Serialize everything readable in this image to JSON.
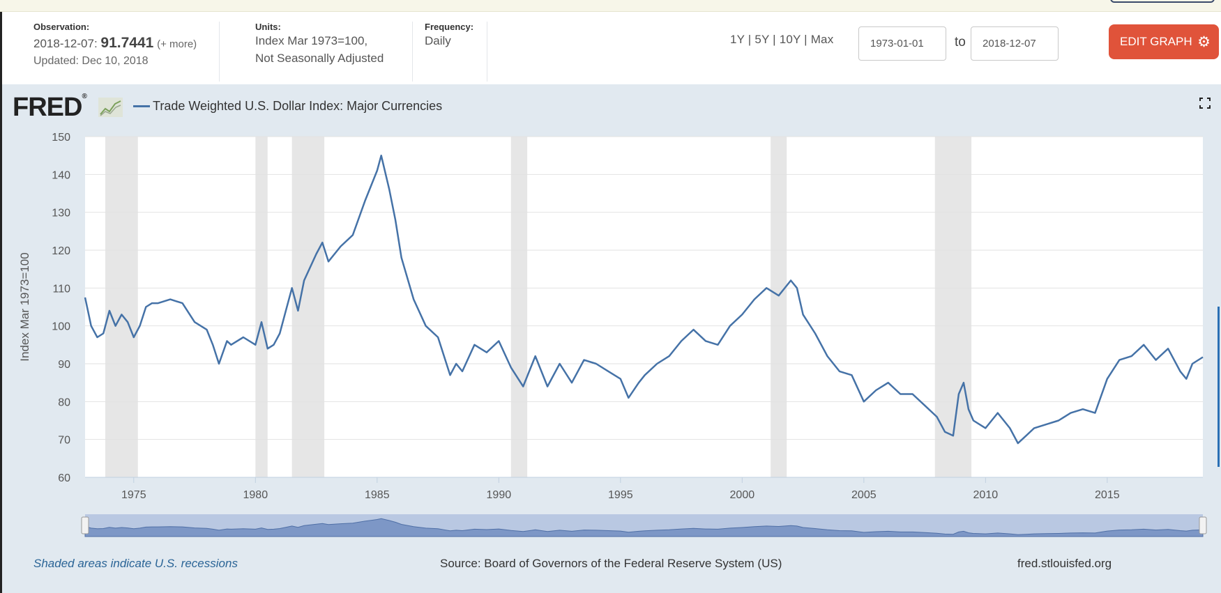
{
  "header": {
    "observation_label": "Observation:",
    "observation_date": "2018-12-07:",
    "observation_value": "91.7441",
    "observation_more": "(+ more)",
    "updated": "Updated: Dec 10, 2018",
    "units_label": "Units:",
    "units_line1": "Index Mar 1973=100,",
    "units_line2": "Not Seasonally Adjusted",
    "frequency_label": "Frequency:",
    "frequency_value": "Daily",
    "range_links": "1Y | 5Y | 10Y | Max",
    "date_start": "1973-01-01",
    "to_label": "to",
    "date_end": "2018-12-07",
    "edit_button": "EDIT GRAPH",
    "accent_color": "#e0533a"
  },
  "graph": {
    "logo": "FRED",
    "logo_mark": "®",
    "series_title": "Trade Weighted U.S. Dollar Index: Major Currencies",
    "series_color": "#4572a7"
  },
  "footer": {
    "note": "Shaded areas indicate U.S. recessions",
    "source": "Source: Board of Governors of the Federal Reserve System (US)",
    "site": "fred.stlouisfed.org"
  },
  "chart_data": {
    "type": "line",
    "title": "Trade Weighted U.S. Dollar Index: Major Currencies",
    "ylabel": "Index Mar 1973=100",
    "xlabel": "",
    "xlim": [
      1973.0,
      2018.93
    ],
    "ylim": [
      60,
      150
    ],
    "x_ticks": [
      1975,
      1980,
      1985,
      1990,
      1995,
      2000,
      2005,
      2010,
      2015
    ],
    "y_ticks": [
      60,
      70,
      80,
      90,
      100,
      110,
      120,
      130,
      140,
      150
    ],
    "grid": true,
    "recessions": [
      [
        1973.83,
        1975.17
      ],
      [
        1980.0,
        1980.5
      ],
      [
        1981.5,
        1982.83
      ],
      [
        1990.5,
        1991.17
      ],
      [
        2001.17,
        2001.83
      ],
      [
        2007.92,
        2009.42
      ]
    ],
    "series": [
      {
        "name": "Trade Weighted U.S. Dollar Index: Major Currencies",
        "x": [
          1973.0,
          1973.25,
          1973.5,
          1973.75,
          1974.0,
          1974.25,
          1974.5,
          1974.75,
          1975.0,
          1975.25,
          1975.5,
          1975.75,
          1976.0,
          1976.5,
          1977.0,
          1977.5,
          1978.0,
          1978.25,
          1978.5,
          1978.83,
          1979.0,
          1979.5,
          1980.0,
          1980.25,
          1980.5,
          1980.75,
          1981.0,
          1981.25,
          1981.5,
          1981.75,
          1982.0,
          1982.5,
          1982.75,
          1983.0,
          1983.5,
          1984.0,
          1984.5,
          1984.75,
          1985.0,
          1985.17,
          1985.5,
          1985.75,
          1986.0,
          1986.5,
          1987.0,
          1987.5,
          1988.0,
          1988.25,
          1988.5,
          1989.0,
          1989.5,
          1990.0,
          1990.5,
          1991.0,
          1991.5,
          1992.0,
          1992.5,
          1993.0,
          1993.5,
          1994.0,
          1994.5,
          1995.0,
          1995.33,
          1995.75,
          1996.0,
          1996.5,
          1997.0,
          1997.5,
          1998.0,
          1998.5,
          1999.0,
          1999.5,
          2000.0,
          2000.5,
          2001.0,
          2001.5,
          2002.0,
          2002.25,
          2002.5,
          2003.0,
          2003.5,
          2004.0,
          2004.5,
          2005.0,
          2005.5,
          2006.0,
          2006.5,
          2007.0,
          2007.5,
          2008.0,
          2008.33,
          2008.67,
          2008.9,
          2009.1,
          2009.3,
          2009.5,
          2010.0,
          2010.5,
          2011.0,
          2011.33,
          2011.67,
          2012.0,
          2012.5,
          2013.0,
          2013.5,
          2014.0,
          2014.5,
          2015.0,
          2015.5,
          2016.0,
          2016.5,
          2017.0,
          2017.5,
          2018.0,
          2018.25,
          2018.5,
          2018.93
        ],
        "y": [
          107.5,
          100,
          97,
          98,
          104,
          100,
          103,
          101,
          97,
          100,
          105,
          106,
          106,
          107,
          106,
          101,
          99,
          95,
          90,
          96,
          95,
          97,
          95,
          101,
          94,
          95,
          98,
          104,
          110,
          104,
          112,
          119,
          122,
          117,
          121,
          124,
          133,
          137,
          141,
          145,
          136,
          128,
          118,
          107,
          100,
          97,
          87,
          90,
          88,
          95,
          93,
          96,
          89,
          84,
          92,
          84,
          90,
          85,
          91,
          90,
          88,
          86,
          81,
          85,
          87,
          90,
          92,
          96,
          99,
          96,
          95,
          100,
          103,
          107,
          110,
          108,
          112,
          110,
          103,
          98,
          92,
          88,
          87,
          80,
          83,
          85,
          82,
          82,
          79,
          76,
          72,
          71,
          82,
          85,
          78,
          75,
          73,
          77,
          73,
          69,
          71,
          73,
          74,
          75,
          77,
          78,
          77,
          86,
          91,
          92,
          95,
          91,
          94,
          88,
          86,
          90,
          91.74
        ]
      }
    ]
  }
}
